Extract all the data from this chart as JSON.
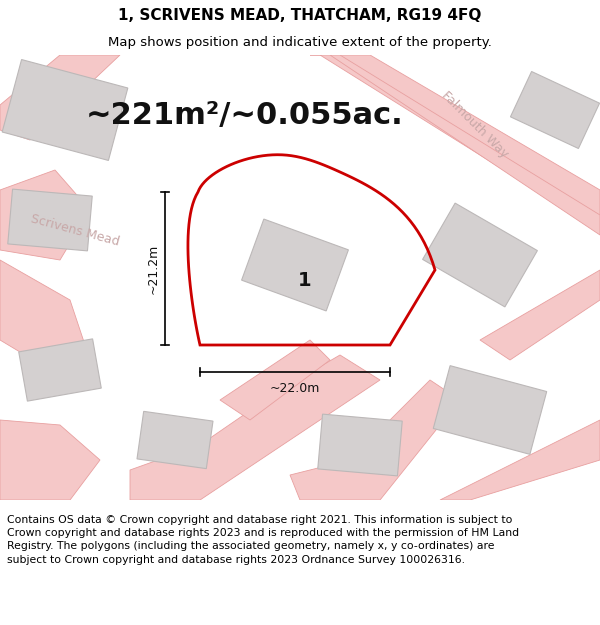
{
  "title": "1, SCRIVENS MEAD, THATCHAM, RG19 4FQ",
  "subtitle": "Map shows position and indicative extent of the property.",
  "area_text": "~221m²/~0.055ac.",
  "dim_vertical": "~21.2m",
  "dim_horizontal": "~22.0m",
  "label": "1",
  "footer": "Contains OS data © Crown copyright and database right 2021. This information is subject to Crown copyright and database rights 2023 and is reproduced with the permission of HM Land Registry. The polygons (including the associated geometry, namely x, y co-ordinates) are subject to Crown copyright and database rights 2023 Ordnance Survey 100026316.",
  "bg_color": "#ffffff",
  "map_bg": "#f2f0f0",
  "road_color": "#f5c8c8",
  "road_edge": "#e8a0a0",
  "building_fill": "#d4d0d0",
  "building_edge": "#bcb8b8",
  "plot_color": "#cc0000",
  "plot_lw": 2.0,
  "title_fontsize": 11,
  "subtitle_fontsize": 9.5,
  "area_fontsize": 22,
  "label_fontsize": 14,
  "dim_fontsize": 9,
  "footer_fontsize": 7.8,
  "street_color": "#c8a8a8",
  "street_fontsize": 9
}
